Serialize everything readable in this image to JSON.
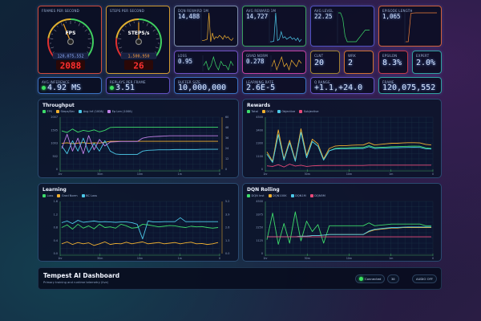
{
  "colors": {
    "green": "#3ddc6b",
    "orange": "#f0b030",
    "cyan": "#4cc8e8",
    "purple": "#c080e8",
    "pink": "#e84a7a",
    "red": "#ff3030"
  },
  "gauges": [
    {
      "label": "Frames per second",
      "unit": "FPS",
      "total": "120,075,552",
      "digital": "2088",
      "fraction": 0.42,
      "border": "#d04a3a",
      "box_color": "#8fb0ff"
    },
    {
      "label": "Steps per second",
      "unit": "STEPS/s",
      "total": "1,500,950",
      "digital": "26",
      "fraction": 0.5,
      "border": "#d09a30",
      "box_color": "#ffa040"
    }
  ],
  "spark_cards": [
    {
      "label": "DQN Reward 1M",
      "value": "14,488",
      "border": "#7a8aa8",
      "color": "#f0b030",
      "values": [
        1.2,
        1.2,
        1.25,
        1.3,
        3.4,
        1.1,
        1.8,
        1.3,
        1.5,
        1.4,
        1.6,
        1.5,
        1.3,
        1.6,
        1.4,
        1.5,
        1.3,
        1.2,
        1.4
      ]
    },
    {
      "label": "Avg Reward 1M",
      "value": "14,727",
      "border": "#3aa060",
      "color": "#4cc8e8",
      "values": [
        1.3,
        1.3,
        1.35,
        3.6,
        1.4,
        1.5,
        2.1,
        1.6,
        1.7,
        1.5,
        1.6,
        1.7,
        1.5,
        1.6,
        1.4,
        1.6,
        1.3,
        1.5
      ]
    },
    {
      "label": "Avg Level",
      "value": "22.25",
      "border": "#5050c0",
      "color": "#3ddc6b",
      "values": [
        26,
        26,
        25,
        22,
        21,
        21,
        21,
        21,
        21,
        21.5,
        22,
        22.5,
        23,
        23,
        23
      ]
    },
    {
      "label": "Episode Length",
      "value": "1,065",
      "border": "#d0603a",
      "color": "#f0803a",
      "values": [
        200,
        200,
        1050,
        1060,
        1065,
        1065,
        1065,
        1065,
        1065,
        1065,
        1065,
        1065,
        1065
      ]
    }
  ],
  "small_cards": [
    {
      "label": "Loss",
      "value": "0.95",
      "border": "#7050c0",
      "color": "#3ddc6b",
      "values": [
        0.95,
        0.96,
        0.94,
        0.95,
        0.97,
        0.95,
        0.94,
        0.96,
        0.95,
        0.95,
        0.94,
        0.96,
        0.95
      ]
    },
    {
      "label": "Grad Norm",
      "value": "0.278",
      "border": "#c040a0",
      "color": "#f0b030",
      "values": [
        0.27,
        0.29,
        0.26,
        0.28,
        0.3,
        0.27,
        0.28,
        0.26,
        0.29,
        0.28,
        0.27,
        0.29,
        0.28
      ]
    }
  ],
  "mini_cards": [
    {
      "label": "CLNT",
      "value": "20",
      "border": "#a08030"
    },
    {
      "label": "WRK",
      "value": "2",
      "border": "#d07030"
    },
    {
      "label": "Epsilon",
      "value": "8.3%",
      "border": "#c03a4a"
    },
    {
      "label": "Expert",
      "value": "2.0%",
      "border": "#30a0a0"
    }
  ],
  "row3": [
    {
      "label": "Avg Inference",
      "value": "4.92 MS",
      "dot": true,
      "border": "#3a70c0"
    },
    {
      "label": "Replays per frame",
      "value": "3.51",
      "dot": true,
      "border": "#6050c0"
    },
    {
      "label": "Buffer Size",
      "value": "10,000,000",
      "dot": false,
      "border": "#3a70c0"
    },
    {
      "label": "Learning Rate",
      "value": "2.6E-5",
      "dot": false,
      "border": "#3a70c0"
    },
    {
      "label": "Q Range",
      "value": "+1.1,+24.0",
      "dot": false,
      "border": "#6050c0"
    },
    {
      "label": "Frame",
      "value": "120,075,552",
      "dot": false,
      "border": "#30a0a0"
    }
  ],
  "chart_data": [
    {
      "type": "line",
      "title": "Throughput",
      "xticks": [
        "1hr",
        "30m",
        "10m",
        "1m",
        "0"
      ],
      "ylim": [
        0,
        2007
      ],
      "yticks": [
        "2007",
        "1505",
        "1003",
        "502",
        "0"
      ],
      "y2ticks": [
        "60",
        "48",
        "36",
        "24",
        "12",
        "0"
      ],
      "series": [
        {
          "name": "FPS",
          "color": "#3ddc6b",
          "values": [
            1480,
            1420,
            1550,
            1430,
            1500,
            1460,
            1520,
            1440,
            1500,
            1610,
            1620,
            1620,
            1620,
            1620,
            1620,
            1620,
            1620,
            1620,
            1620,
            1620,
            1620,
            1620,
            1620,
            1620,
            1620,
            1620,
            1620,
            1620,
            1620,
            1620
          ]
        },
        {
          "name": "Steps/Sec",
          "color": "#f0b030",
          "values": [
            1000,
            1020,
            990,
            1010,
            1030,
            1000,
            1020,
            1010,
            1040,
            1080,
            1080,
            1080,
            1080,
            1080,
            1080,
            1080,
            1080,
            1080,
            1080,
            1080,
            1080,
            1080,
            1080,
            1080,
            1080,
            1080,
            1080,
            1080,
            1080,
            1080
          ]
        },
        {
          "name": "Avg Inf (100ß)",
          "color": "#4cc8e8",
          "values": [
            900,
            600,
            1100,
            700,
            1200,
            650,
            1000,
            700,
            1100,
            700,
            590,
            570,
            570,
            570,
            570,
            700,
            730,
            740,
            750,
            750,
            750,
            760,
            760,
            760,
            760,
            760,
            770,
            770,
            770,
            770
          ]
        },
        {
          "name": "Ep Len (100ß)",
          "color": "#c080e8",
          "values": [
            800,
            1350,
            700,
            1200,
            600,
            1300,
            750,
            1150,
            900,
            1050,
            1060,
            1070,
            1070,
            1070,
            1070,
            1200,
            1240,
            1260,
            1270,
            1280,
            1290,
            1290,
            1290,
            1290,
            1290,
            1290,
            1290,
            1290,
            1290,
            1290
          ]
        }
      ]
    },
    {
      "type": "line",
      "title": "Rewards",
      "xticks": [
        "1hr",
        "30m",
        "10m",
        "1m",
        "0"
      ],
      "ylim": [
        0,
        4500
      ],
      "yticks": [
        "4500",
        "3400",
        "2300",
        "1100",
        "0"
      ],
      "series": [
        {
          "name": "Total",
          "color": "#3ddc6b",
          "values": [
            1300,
            600,
            3000,
            800,
            2300,
            700,
            3200,
            1000,
            2400,
            2000,
            800,
            1600,
            1800,
            1850,
            1850,
            1870,
            1880,
            1880,
            2050,
            1880,
            1900,
            1920,
            1950,
            1960,
            1980,
            1990,
            2000,
            1990,
            1850,
            1800
          ]
        },
        {
          "name": "DQN",
          "color": "#f0b030",
          "values": [
            1500,
            700,
            3400,
            900,
            2500,
            800,
            3500,
            1200,
            2600,
            2200,
            900,
            1800,
            2000,
            2050,
            2050,
            2080,
            2100,
            2100,
            2300,
            2100,
            2150,
            2200,
            2250,
            2250,
            2280,
            2300,
            2300,
            2280,
            2150,
            2100
          ]
        },
        {
          "name": "Objective",
          "color": "#4cc8e8",
          "values": [
            1300,
            600,
            3000,
            800,
            2300,
            700,
            3200,
            1000,
            2400,
            2000,
            800,
            1600,
            1750,
            1780,
            1780,
            1790,
            1800,
            1800,
            1950,
            1800,
            1820,
            1840,
            1860,
            1870,
            1880,
            1890,
            1900,
            1890,
            1780,
            1750
          ]
        },
        {
          "name": "Subjective",
          "color": "#e84a7a",
          "values": [
            300,
            250,
            400,
            200,
            450,
            280,
            350,
            250,
            300,
            320,
            330,
            330,
            330,
            330,
            330,
            330,
            330,
            330,
            360,
            360,
            360,
            360,
            360,
            360,
            360,
            360,
            360,
            360,
            360,
            360
          ]
        }
      ]
    },
    {
      "type": "line",
      "title": "Learning",
      "xticks": [
        "1hr",
        "30m",
        "10m",
        "1m",
        "0"
      ],
      "ylim": [
        0,
        1.6
      ],
      "yticks": [
        "1.6",
        "1.2",
        "0.8",
        "0.4",
        "0.0"
      ],
      "y2ticks": [
        "5.2",
        "3.9",
        "2.6",
        "1.3",
        "0.0"
      ],
      "series": [
        {
          "name": "Loss",
          "color": "#3ddc6b",
          "values": [
            0.8,
            0.88,
            0.75,
            0.9,
            0.78,
            0.85,
            0.76,
            0.9,
            0.8,
            0.82,
            0.78,
            0.9,
            0.85,
            0.78,
            0.8,
            0.9,
            0.88,
            0.85,
            0.82,
            0.84,
            0.86,
            0.85,
            0.82,
            0.8,
            0.84,
            0.82,
            0.83,
            0.8,
            0.78,
            0.8
          ]
        },
        {
          "name": "Grad Norm",
          "color": "#f0b030",
          "values": [
            0.3,
            0.36,
            0.28,
            0.34,
            0.3,
            0.33,
            0.25,
            0.3,
            0.36,
            0.28,
            0.31,
            0.3,
            0.35,
            0.3,
            0.33,
            0.36,
            0.3,
            0.32,
            0.34,
            0.3,
            0.32,
            0.34,
            0.3,
            0.33,
            0.35,
            0.3,
            0.31,
            0.28,
            0.3,
            0.34
          ]
        },
        {
          "name": "BC Loss",
          "color": "#4cc8e8",
          "values": [
            0.95,
            1.0,
            0.92,
            1.02,
            0.96,
            0.98,
            1.0,
            0.97,
            0.98,
            0.97,
            0.96,
            0.97,
            0.97,
            0.95,
            0.9,
            0.45,
            1.0,
            0.97,
            0.97,
            0.98,
            0.98,
            0.98,
            1.1,
            0.98,
            0.98,
            0.98,
            0.98,
            0.98,
            0.98,
            0.98
          ]
        }
      ]
    },
    {
      "type": "line",
      "title": "DQN Rolling",
      "xticks": [
        "1hr",
        "30m",
        "10m",
        "1m",
        "0"
      ],
      "ylim": [
        0,
        4500
      ],
      "yticks": [
        "4500",
        "3375",
        "2250",
        "1125",
        "0"
      ],
      "series": [
        {
          "name": "DQN Inst",
          "color": "#3ddc6b",
          "values": [
            1200,
            3500,
            800,
            2600,
            900,
            3600,
            1100,
            2800,
            1900,
            2500,
            900,
            2400,
            2400,
            2400,
            2400,
            2400,
            2400,
            2400,
            2650,
            2400,
            2450,
            2500,
            2550,
            2550,
            2550,
            2550,
            2550,
            2550,
            2400,
            2400
          ]
        },
        {
          "name": "DQN100K",
          "color": "#f0b030",
          "values": [
            1450,
            1450,
            1450,
            1450,
            1450,
            1450,
            1500,
            1500,
            1550,
            1550,
            1600,
            1650,
            1650,
            1650,
            1650,
            1650,
            1650,
            1650,
            1900,
            2050,
            2100,
            2150,
            2200,
            2200,
            2250,
            2250,
            2250,
            2250,
            2250,
            2250
          ]
        },
        {
          "name": "DQN1M",
          "color": "#4cc8e8",
          "values": [
            1450,
            1450,
            1450,
            1450,
            1450,
            1450,
            1500,
            1500,
            1550,
            1550,
            1600,
            1650,
            1650,
            1650,
            1650,
            1650,
            1650,
            1650,
            1950,
            2100,
            2150,
            2200,
            2250,
            2250,
            2280,
            2300,
            2300,
            2300,
            2300,
            2300
          ]
        },
        {
          "name": "DQN5M",
          "color": "#e84a7a",
          "values": [
            1450,
            1450,
            1450,
            1450,
            1450,
            1450,
            1450,
            1450,
            1450,
            1450,
            1450,
            1450,
            1450,
            1450,
            1450,
            1450,
            1450,
            1450,
            1450,
            1450,
            1450,
            1450,
            1450,
            1450,
            1450,
            1450,
            1450,
            1450,
            1450,
            1450
          ]
        }
      ]
    }
  ],
  "footer": {
    "title": "Tempest AI Dashboard",
    "subtitle": "Primary training and runtime telemetry (live)",
    "status": "Connected",
    "counter": "30",
    "audio": "AUDIO OFF"
  }
}
